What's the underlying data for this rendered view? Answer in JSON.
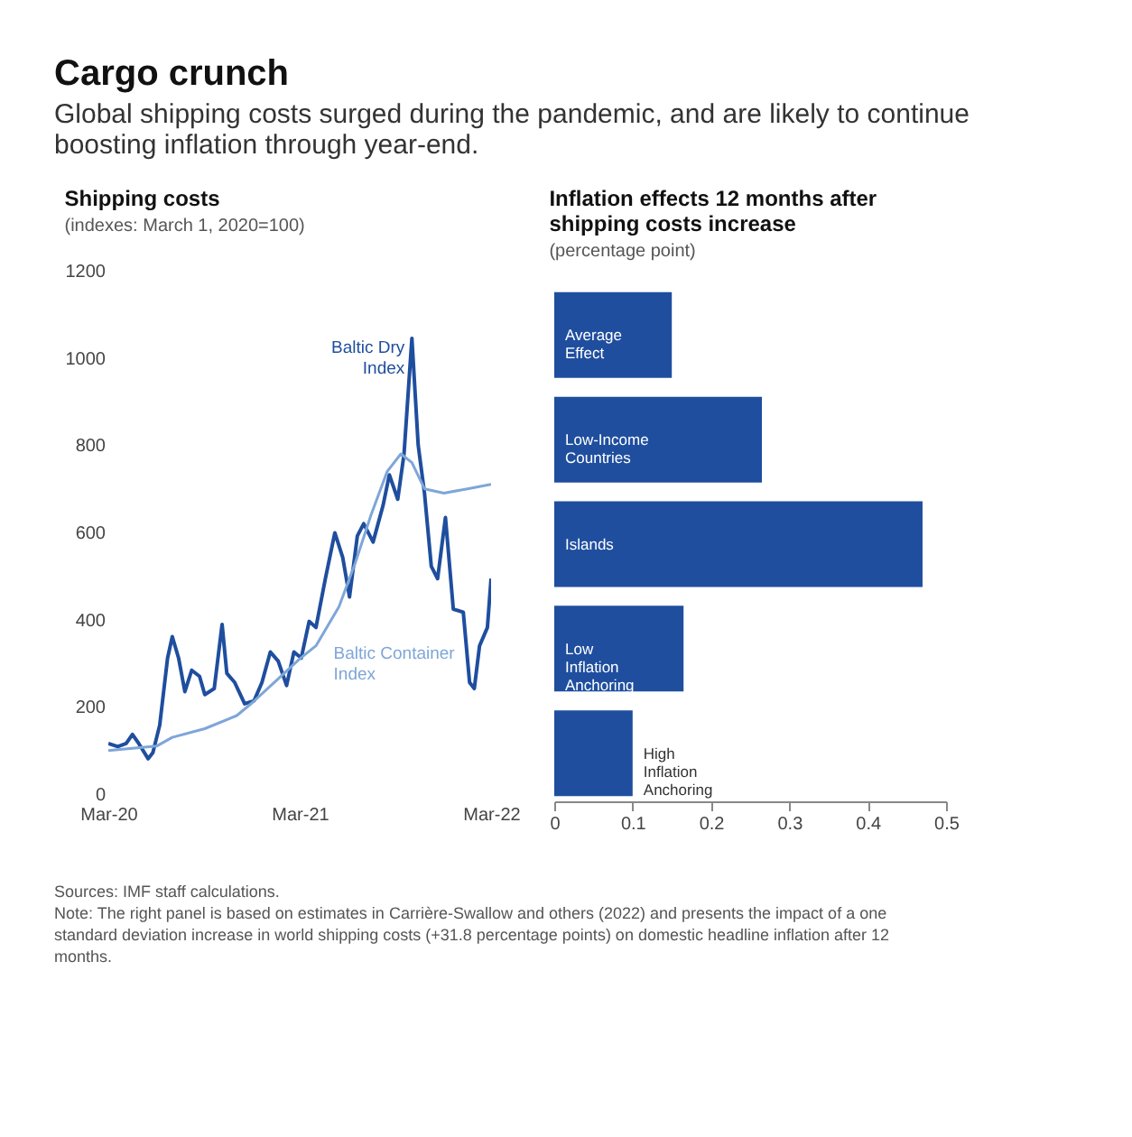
{
  "chart_data": [
    {
      "type": "other",
      "title": "Cargo crunch",
      "subtitle": "Global shipping costs surged during the pandemic, and are likely to continue boosting inflation through year-end.",
      "annotations": [
        "Sources: IMF staff calculations.",
        "Note: The right panel is based on estimates in Carrière-Swallow and others (2022) and presents the impact of a one standard deviation increase in world shipping costs (+31.8 percentage points) on domestic headline inflation after 12 months."
      ]
    },
    {
      "type": "line",
      "title": "Shipping costs",
      "subtitle": "(indexes: March 1, 2020=100)",
      "xlim": [
        "2020-03-01",
        "2022-03-01"
      ],
      "xticks": [
        {
          "value": "2020-03-01",
          "label": "Mar-20"
        },
        {
          "value": "2021-03-01",
          "label": "Mar-21"
        },
        {
          "value": "2022-03-01",
          "label": "Mar-22"
        }
      ],
      "ylim": [
        0,
        1200
      ],
      "yticks": [
        0,
        200,
        400,
        600,
        800,
        1000,
        1200
      ],
      "grid": false,
      "series": [
        {
          "name": "Baltic Dry Index",
          "color": "#1f4e9e",
          "x": [
            "2020-03-01",
            "2020-03-19",
            "2020-04-04",
            "2020-04-16",
            "2020-04-28",
            "2020-05-16",
            "2020-05-25",
            "2020-06-07",
            "2020-06-22",
            "2020-07-01",
            "2020-07-13",
            "2020-07-25",
            "2020-08-07",
            "2020-08-22",
            "2020-09-01",
            "2020-09-19",
            "2020-10-04",
            "2020-10-13",
            "2020-10-28",
            "2020-11-16",
            "2020-12-04",
            "2020-12-19",
            "2021-01-04",
            "2021-01-19",
            "2021-02-04",
            "2021-02-18",
            "2021-03-04",
            "2021-03-19",
            "2021-04-01",
            "2021-04-19",
            "2021-05-07",
            "2021-05-22",
            "2021-06-04",
            "2021-06-19",
            "2021-07-01",
            "2021-07-19",
            "2021-08-07",
            "2021-08-19",
            "2021-09-04",
            "2021-09-16",
            "2021-10-01",
            "2021-10-13",
            "2021-10-25",
            "2021-11-07",
            "2021-11-19",
            "2021-12-04",
            "2021-12-19",
            "2022-01-07",
            "2022-01-19",
            "2022-01-28",
            "2022-02-07",
            "2022-02-22",
            "2022-03-01"
          ],
          "values": [
            116,
            109,
            116,
            137,
            116,
            81,
            95,
            158,
            312,
            361,
            312,
            235,
            284,
            270,
            228,
            242,
            389,
            277,
            256,
            207,
            214,
            256,
            326,
            305,
            249,
            326,
            312,
            396,
            382,
            494,
            599,
            543,
            452,
            592,
            620,
            578,
            662,
            732,
            676,
            780,
            1045,
            800,
            690,
            522,
            494,
            634,
            424,
            417,
            256,
            242,
            340,
            382,
            494
          ]
        },
        {
          "name": "Baltic Container Index",
          "color": "#7ea6d8",
          "x": [
            "2020-03-01",
            "2020-06-01",
            "2020-07-01",
            "2020-09-01",
            "2020-11-01",
            "2020-12-01",
            "2021-01-15",
            "2021-03-01",
            "2021-04-01",
            "2021-05-15",
            "2021-06-15",
            "2021-07-15",
            "2021-08-15",
            "2021-09-10",
            "2021-10-01",
            "2021-10-25",
            "2021-12-01",
            "2022-01-15",
            "2022-03-01"
          ],
          "values": [
            100,
            110,
            130,
            150,
            180,
            210,
            260,
            310,
            340,
            430,
            530,
            640,
            740,
            780,
            760,
            700,
            690,
            700,
            710
          ]
        }
      ]
    },
    {
      "type": "bar",
      "orientation": "horizontal",
      "title": "Inflation effects 12 months after shipping costs increase",
      "subtitle": "(percentage point)",
      "categories": [
        "Average Effect",
        "Low-Income Countries",
        "Islands",
        "Low Inflation Anchoring",
        "High Inflation Anchoring"
      ],
      "values": [
        0.15,
        0.265,
        0.47,
        0.165,
        0.1
      ],
      "color": "#1f4e9e",
      "xlim": [
        0,
        0.5
      ],
      "xticks": [
        0,
        0.1,
        0.2,
        0.3,
        0.4,
        0.5
      ],
      "grid": false,
      "tick_labels": "x"
    }
  ]
}
